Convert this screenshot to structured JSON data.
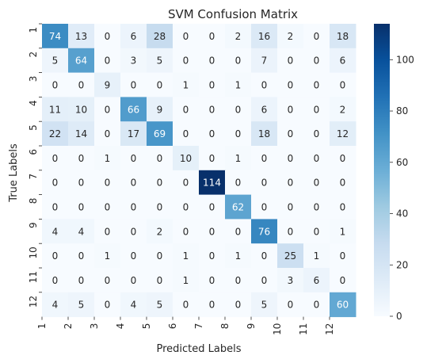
{
  "chart_data": {
    "type": "heatmap",
    "title": "SVM Confusion Matrix",
    "xlabel": "Predicted Labels",
    "ylabel": "True Labels",
    "x_categories": [
      "1",
      "2",
      "3",
      "4",
      "5",
      "6",
      "7",
      "8",
      "9",
      "10",
      "11",
      "12"
    ],
    "y_categories": [
      "1",
      "2",
      "3",
      "4",
      "5",
      "6",
      "7",
      "8",
      "9",
      "10",
      "11",
      "12"
    ],
    "values": [
      [
        74,
        13,
        0,
        6,
        28,
        0,
        0,
        2,
        16,
        2,
        0,
        18
      ],
      [
        5,
        64,
        0,
        3,
        5,
        0,
        0,
        0,
        7,
        0,
        0,
        6
      ],
      [
        0,
        0,
        9,
        0,
        0,
        1,
        0,
        1,
        0,
        0,
        0,
        0
      ],
      [
        11,
        10,
        0,
        66,
        9,
        0,
        0,
        0,
        6,
        0,
        0,
        2
      ],
      [
        22,
        14,
        0,
        17,
        69,
        0,
        0,
        0,
        18,
        0,
        0,
        12
      ],
      [
        0,
        0,
        1,
        0,
        0,
        10,
        0,
        1,
        0,
        0,
        0,
        0
      ],
      [
        0,
        0,
        0,
        0,
        0,
        0,
        114,
        0,
        0,
        0,
        0,
        0
      ],
      [
        0,
        0,
        0,
        0,
        0,
        0,
        0,
        62,
        0,
        0,
        0,
        0
      ],
      [
        4,
        4,
        0,
        0,
        2,
        0,
        0,
        0,
        76,
        0,
        0,
        1
      ],
      [
        0,
        0,
        1,
        0,
        0,
        1,
        0,
        1,
        0,
        25,
        1,
        0
      ],
      [
        0,
        0,
        0,
        0,
        0,
        1,
        0,
        0,
        0,
        3,
        6,
        0
      ],
      [
        4,
        5,
        0,
        4,
        5,
        0,
        0,
        0,
        5,
        0,
        0,
        60
      ]
    ],
    "colormap": "Blues",
    "colorbar": {
      "range": [
        0,
        114
      ],
      "ticks": [
        0,
        20,
        40,
        60,
        80,
        100
      ]
    },
    "grid": false
  }
}
